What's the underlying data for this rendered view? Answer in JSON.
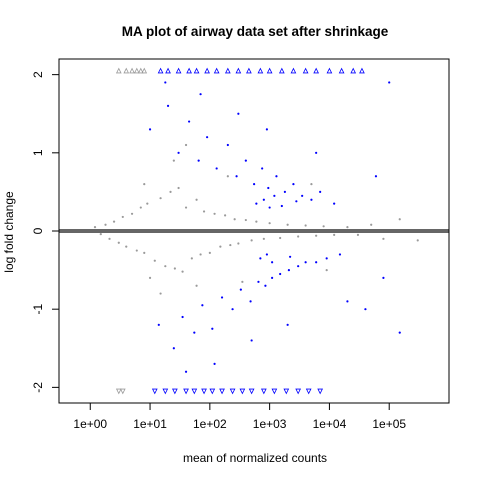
{
  "chart_data": {
    "type": "scatter",
    "title": "MA plot of airway data set after shrinkage",
    "xlabel": "mean of normalized counts",
    "ylabel": "log fold change",
    "x_scale": "log10",
    "xlim": [
      0.3,
      1000000
    ],
    "ylim": [
      -2.2,
      2.2
    ],
    "x_ticks": [
      {
        "value": 1,
        "label": "1e+00"
      },
      {
        "value": 10,
        "label": "1e+01"
      },
      {
        "value": 100,
        "label": "1e+02"
      },
      {
        "value": 1000,
        "label": "1e+03"
      },
      {
        "value": 10000,
        "label": "1e+04"
      },
      {
        "value": 100000,
        "label": "1e+05"
      }
    ],
    "y_ticks": [
      {
        "value": -2,
        "label": "-2"
      },
      {
        "value": -1,
        "label": "-1"
      },
      {
        "value": 0,
        "label": "0"
      },
      {
        "value": 1,
        "label": "1"
      },
      {
        "value": 2,
        "label": "2"
      }
    ],
    "reference_line": {
      "y": 0,
      "color": "#666666"
    },
    "grid": false,
    "legend": "none",
    "series": [
      {
        "color": "#9a9a9a",
        "points": [
          [
            1.2,
            0.05
          ],
          [
            1.5,
            -0.04
          ],
          [
            1.8,
            0.08
          ],
          [
            2.1,
            -0.1
          ],
          [
            2.5,
            0.12
          ],
          [
            3.0,
            -0.15
          ],
          [
            3.5,
            0.18
          ],
          [
            4.0,
            -0.2
          ],
          [
            5.0,
            0.22
          ],
          [
            6.0,
            -0.25
          ],
          [
            7.0,
            0.3
          ],
          [
            8.0,
            -0.28
          ],
          [
            9.0,
            0.35
          ],
          [
            12,
            -0.38
          ],
          [
            15,
            0.42
          ],
          [
            18,
            -0.45
          ],
          [
            22,
            0.5
          ],
          [
            26,
            -0.48
          ],
          [
            30,
            0.55
          ],
          [
            35,
            -0.52
          ],
          [
            40,
            0.3
          ],
          [
            50,
            -0.35
          ],
          [
            60,
            0.4
          ],
          [
            70,
            -0.3
          ],
          [
            80,
            0.25
          ],
          [
            100,
            -0.28
          ],
          [
            120,
            0.22
          ],
          [
            150,
            -0.2
          ],
          [
            180,
            0.2
          ],
          [
            220,
            -0.18
          ],
          [
            260,
            0.15
          ],
          [
            300,
            -0.16
          ],
          [
            400,
            0.14
          ],
          [
            500,
            -0.12
          ],
          [
            600,
            0.12
          ],
          [
            800,
            -0.1
          ],
          [
            1000,
            0.1
          ],
          [
            1500,
            -0.09
          ],
          [
            2000,
            0.08
          ],
          [
            3000,
            -0.07
          ],
          [
            4000,
            0.07
          ],
          [
            6000,
            -0.06
          ],
          [
            8000,
            0.06
          ],
          [
            12000,
            -0.05
          ],
          [
            20000,
            0.05
          ],
          [
            30000,
            -0.05
          ],
          [
            50000,
            0.08
          ],
          [
            80000,
            -0.1
          ],
          [
            150000,
            0.15
          ],
          [
            300000,
            -0.12
          ],
          [
            25,
            0.9
          ],
          [
            40,
            1.1
          ],
          [
            15,
            -0.8
          ],
          [
            60,
            -0.7
          ],
          [
            8,
            0.6
          ],
          [
            10,
            -0.6
          ],
          [
            200,
            0.7
          ],
          [
            350,
            -0.65
          ],
          [
            5000,
            0.6
          ],
          [
            9000,
            -0.5
          ]
        ]
      },
      {
        "color": "#0000ff",
        "points": [
          [
            10,
            1.3
          ],
          [
            14,
            -1.2
          ],
          [
            20,
            1.6
          ],
          [
            25,
            -1.5
          ],
          [
            30,
            1.0
          ],
          [
            35,
            -1.1
          ],
          [
            45,
            1.4
          ],
          [
            55,
            -1.3
          ],
          [
            65,
            0.9
          ],
          [
            75,
            -0.95
          ],
          [
            90,
            1.2
          ],
          [
            110,
            -1.25
          ],
          [
            130,
            0.8
          ],
          [
            160,
            -0.85
          ],
          [
            200,
            1.1
          ],
          [
            240,
            -1.0
          ],
          [
            280,
            0.7
          ],
          [
            330,
            -0.75
          ],
          [
            400,
            0.9
          ],
          [
            480,
            -0.9
          ],
          [
            550,
            0.6
          ],
          [
            650,
            -0.65
          ],
          [
            750,
            0.8
          ],
          [
            850,
            -0.7
          ],
          [
            950,
            0.55
          ],
          [
            1100,
            -0.6
          ],
          [
            1300,
            0.7
          ],
          [
            1500,
            -0.55
          ],
          [
            1800,
            0.5
          ],
          [
            2100,
            -0.5
          ],
          [
            2500,
            0.6
          ],
          [
            3000,
            -0.45
          ],
          [
            3500,
            0.45
          ],
          [
            4000,
            -0.4
          ],
          [
            5000,
            0.4
          ],
          [
            6000,
            -0.4
          ],
          [
            7000,
            0.5
          ],
          [
            9000,
            -0.35
          ],
          [
            12000,
            0.35
          ],
          [
            15000,
            -0.3
          ],
          [
            18,
            1.9
          ],
          [
            40,
            -1.8
          ],
          [
            70,
            1.75
          ],
          [
            120,
            -1.7
          ],
          [
            300,
            1.5
          ],
          [
            500,
            -1.4
          ],
          [
            900,
            1.3
          ],
          [
            2000,
            -1.2
          ],
          [
            6000,
            1.0
          ],
          [
            20000,
            -0.9
          ],
          [
            600,
            0.35
          ],
          [
            800,
            0.4
          ],
          [
            1000,
            0.3
          ],
          [
            1200,
            0.45
          ],
          [
            700,
            -0.35
          ],
          [
            900,
            -0.3
          ],
          [
            1100,
            -0.4
          ],
          [
            1600,
            0.32
          ],
          [
            2200,
            -0.33
          ],
          [
            2800,
            0.38
          ],
          [
            100000,
            1.9
          ],
          [
            150000,
            -1.3
          ],
          [
            60000,
            0.7
          ],
          [
            80000,
            -0.6
          ],
          [
            40000,
            -1.0
          ]
        ]
      },
      {
        "color": "#0000ff",
        "marker": "triangle-up",
        "points": [
          [
            15,
            2.05
          ],
          [
            20,
            2.05
          ],
          [
            30,
            2.05
          ],
          [
            45,
            2.05
          ],
          [
            60,
            2.05
          ],
          [
            90,
            2.05
          ],
          [
            130,
            2.05
          ],
          [
            200,
            2.05
          ],
          [
            300,
            2.05
          ],
          [
            450,
            2.05
          ],
          [
            700,
            2.05
          ],
          [
            1000,
            2.05
          ],
          [
            1600,
            2.05
          ],
          [
            2500,
            2.05
          ],
          [
            4000,
            2.05
          ],
          [
            6000,
            2.05
          ],
          [
            10000,
            2.05
          ],
          [
            16000,
            2.05
          ],
          [
            25000,
            2.05
          ],
          [
            35000,
            2.05
          ]
        ]
      },
      {
        "color": "#0000ff",
        "marker": "triangle-down",
        "points": [
          [
            12,
            -2.05
          ],
          [
            18,
            -2.05
          ],
          [
            26,
            -2.05
          ],
          [
            40,
            -2.05
          ],
          [
            55,
            -2.05
          ],
          [
            80,
            -2.05
          ],
          [
            110,
            -2.05
          ],
          [
            160,
            -2.05
          ],
          [
            240,
            -2.05
          ],
          [
            350,
            -2.05
          ],
          [
            500,
            -2.05
          ],
          [
            800,
            -2.05
          ],
          [
            1200,
            -2.05
          ],
          [
            1900,
            -2.05
          ],
          [
            3000,
            -2.05
          ],
          [
            4500,
            -2.05
          ],
          [
            7000,
            -2.05
          ]
        ]
      },
      {
        "color": "#9a9a9a",
        "marker": "triangle-up",
        "points": [
          [
            3,
            2.05
          ],
          [
            4,
            2.05
          ],
          [
            5,
            2.05
          ],
          [
            6,
            2.05
          ],
          [
            7,
            2.05
          ],
          [
            8,
            2.05
          ]
        ]
      },
      {
        "color": "#9a9a9a",
        "marker": "triangle-down",
        "points": [
          [
            3,
            -2.05
          ],
          [
            3.5,
            -2.05
          ]
        ]
      }
    ]
  }
}
